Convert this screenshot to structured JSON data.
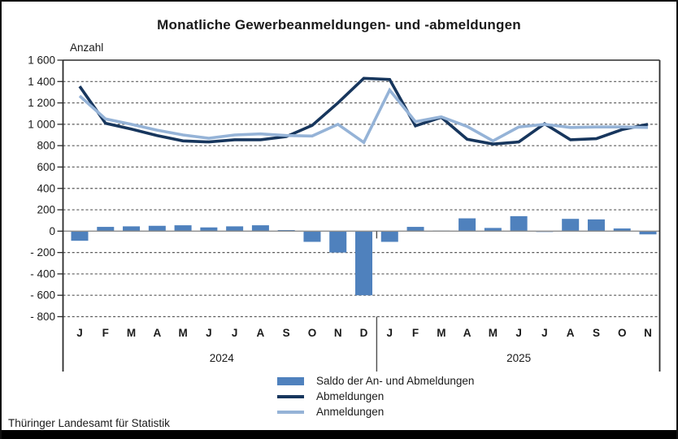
{
  "title": "Monatliche Gewerbeanmeldungen- und -abmeldungen",
  "axis_label": "Anzahl",
  "footer": "Thüringer Landesamt für Statistik",
  "colors": {
    "saldo_bar": "#4f81bd",
    "abmeldungen_line": "#17365d",
    "anmeldungen_line": "#95b3d7",
    "gridline": "#5a5a5a",
    "zero_line": "#8c8c8c",
    "axis": "#2b2b2b"
  },
  "legend": [
    {
      "label": "Saldo der An- und Abmeldungen",
      "swatch": "saldo_bar"
    },
    {
      "label": "Abmeldungen",
      "swatch": "abmeldungen_line"
    },
    {
      "label": "Anmeldungen",
      "swatch": "anmeldungen_line"
    }
  ],
  "chart_data": {
    "type": "bar",
    "subtype": "bars-with-two-lines",
    "title": "Monatliche Gewerbeanmeldungen- und -abmeldungen",
    "ylabel": "Anzahl",
    "ylim": [
      -800,
      1600
    ],
    "y_tick_step": 200,
    "y_ticks": [
      "1 600",
      "1 400",
      "1 200",
      "1 000",
      "800",
      "600",
      "400",
      "200",
      "0",
      "- 200",
      "- 400",
      "- 600",
      "- 800"
    ],
    "grid": "dashed-horizontal",
    "legend_position": "bottom-center",
    "categories": [
      "J",
      "F",
      "M",
      "A",
      "M",
      "J",
      "J",
      "A",
      "S",
      "O",
      "N",
      "D",
      "J",
      "F",
      "M",
      "A",
      "M",
      "J",
      "J",
      "A",
      "S",
      "O",
      "N"
    ],
    "year_groups": [
      {
        "label": "2024",
        "from": 0,
        "to": 11
      },
      {
        "label": "2025",
        "from": 12,
        "to": 22
      }
    ],
    "series": [
      {
        "name": "Saldo der An- und Abmeldungen",
        "type": "bar",
        "values": [
          -90,
          40,
          45,
          50,
          55,
          35,
          45,
          55,
          10,
          -100,
          -200,
          -600,
          -100,
          40,
          5,
          120,
          30,
          140,
          -5,
          115,
          110,
          25,
          -30
        ]
      },
      {
        "name": "Abmeldungen",
        "type": "line",
        "values": [
          1355,
          1010,
          955,
          895,
          845,
          835,
          855,
          855,
          885,
          990,
          1200,
          1430,
          1420,
          985,
          1065,
          860,
          815,
          835,
          1005,
          855,
          865,
          950,
          1000
        ]
      },
      {
        "name": "Anmeldungen",
        "type": "line",
        "values": [
          1265,
          1050,
          1000,
          945,
          900,
          870,
          900,
          910,
          895,
          890,
          1000,
          830,
          1320,
          1025,
          1070,
          980,
          845,
          975,
          1000,
          970,
          975,
          975,
          970
        ]
      }
    ]
  }
}
